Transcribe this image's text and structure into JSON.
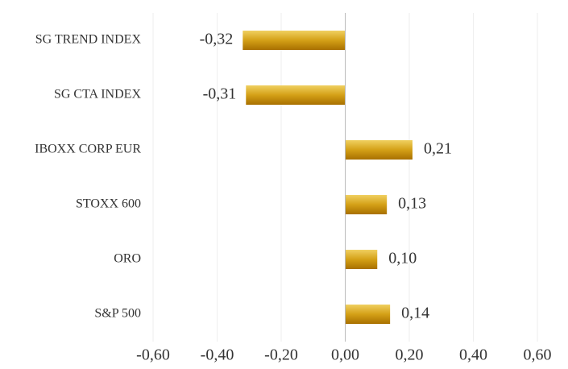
{
  "chart_data": {
    "type": "bar",
    "orientation": "horizontal",
    "categories": [
      "SG TREND INDEX",
      "SG CTA INDEX",
      "IBOXX CORP EUR",
      "STOXX 600",
      "ORO",
      "S&P 500"
    ],
    "values": [
      -0.32,
      -0.31,
      0.21,
      0.13,
      0.1,
      0.14
    ],
    "value_labels": [
      "-0,32",
      "-0,31",
      "0,21",
      "0,13",
      "0,10",
      "0,14"
    ],
    "color": "#d4a017",
    "xlim": [
      -0.6,
      0.6
    ],
    "xticks": [
      {
        "value": -0.6,
        "label": "-0,60"
      },
      {
        "value": -0.4,
        "label": "-0,40"
      },
      {
        "value": -0.2,
        "label": "-0,20"
      },
      {
        "value": 0,
        "label": "0,00"
      },
      {
        "value": 0.2,
        "label": "0,20"
      },
      {
        "value": 0.4,
        "label": "0,40"
      },
      {
        "value": 0.6,
        "label": "0,60"
      }
    ],
    "grid": true
  }
}
